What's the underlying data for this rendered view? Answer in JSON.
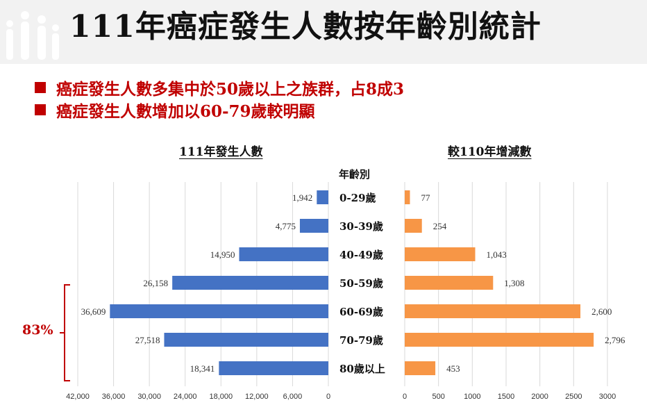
{
  "header": {
    "title": "111年癌症發生人數按年齡別統計",
    "bullets": [
      "癌症發生人數多集中於50歲以上之族群，占8成3",
      "癌症發生人數增加以60-79歲較明顯"
    ]
  },
  "annotation": {
    "bracket_label": "83%",
    "color": "#c00000"
  },
  "chart_data": [
    {
      "type": "bar",
      "orientation": "horizontal",
      "title": "111年發生人數",
      "category_axis_title": "年齡別",
      "categories": [
        "0-29歲",
        "30-39歲",
        "40-49歲",
        "50-59歲",
        "60-69歲",
        "70-79歲",
        "80歲以上"
      ],
      "values": [
        1942,
        4775,
        14950,
        26158,
        36609,
        27518,
        18341
      ],
      "value_labels": [
        "1,942",
        "4,775",
        "14,950",
        "26,158",
        "36,609",
        "27,518",
        "18,341"
      ],
      "xlim": [
        0,
        42000
      ],
      "x_reversed": true,
      "ticks": [
        42000,
        36000,
        30000,
        24000,
        18000,
        12000,
        6000,
        0
      ],
      "tick_labels": [
        "42,000",
        "36,000",
        "30,000",
        "24,000",
        "18,000",
        "12,000",
        "6,000",
        "0"
      ],
      "color": "#4472c4",
      "grid": true
    },
    {
      "type": "bar",
      "orientation": "horizontal",
      "title": "較110年增減數",
      "categories": [
        "0-29歲",
        "30-39歲",
        "40-49歲",
        "50-59歲",
        "60-69歲",
        "70-79歲",
        "80歲以上"
      ],
      "values": [
        77,
        254,
        1043,
        1308,
        2600,
        2796,
        453
      ],
      "value_labels": [
        "77",
        "254",
        "1,043",
        "1,308",
        "2,600",
        "2,796",
        "453"
      ],
      "xlim": [
        0,
        3000
      ],
      "ticks": [
        0,
        500,
        1000,
        1500,
        2000,
        2500,
        3000
      ],
      "tick_labels": [
        "0",
        "500",
        "1000",
        "1500",
        "2000",
        "2500",
        "3000"
      ],
      "color": "#f79646",
      "grid": true
    }
  ]
}
